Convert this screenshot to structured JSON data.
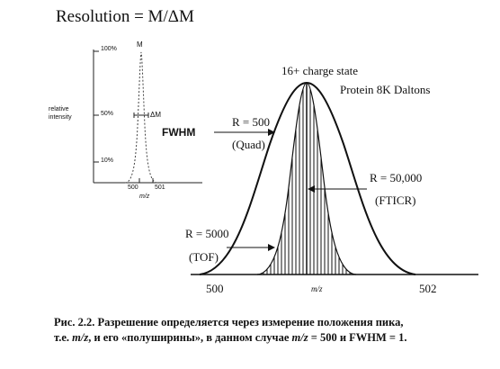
{
  "title": "Resolution = M/ΔM",
  "inset": {
    "ticks": [
      "100%",
      "50%",
      "10%"
    ],
    "ylabel_line1": "relative",
    "ylabel_line2": "intensity",
    "peak_label": "M",
    "width_label": "ΔM",
    "fwhm_label": "FWHM",
    "x_ticks": [
      "500",
      "501"
    ],
    "xlabel": "m/z"
  },
  "main": {
    "charge_label": "16+ charge state",
    "protein_label": "Protein 8K Daltons",
    "quad_r": "R = 500",
    "quad_name": "(Quad)",
    "fticr_r": "R = 50,000",
    "fticr_name": "(FTICR)",
    "tof_r": "R = 5000",
    "tof_name": "(TOF)",
    "x_ticks": [
      "500",
      "502"
    ],
    "xlabel": "m/z"
  },
  "caption": {
    "line1": "Рис. 2.2. Разрешение определяется через измерение положения пика,",
    "line2_a": "т.е. ",
    "line2_b": "m/z",
    "line2_c": ", и его «полуширины», в данном случае ",
    "line2_d": "m/z",
    "line2_e": " = 500 и FWHM = 1."
  }
}
